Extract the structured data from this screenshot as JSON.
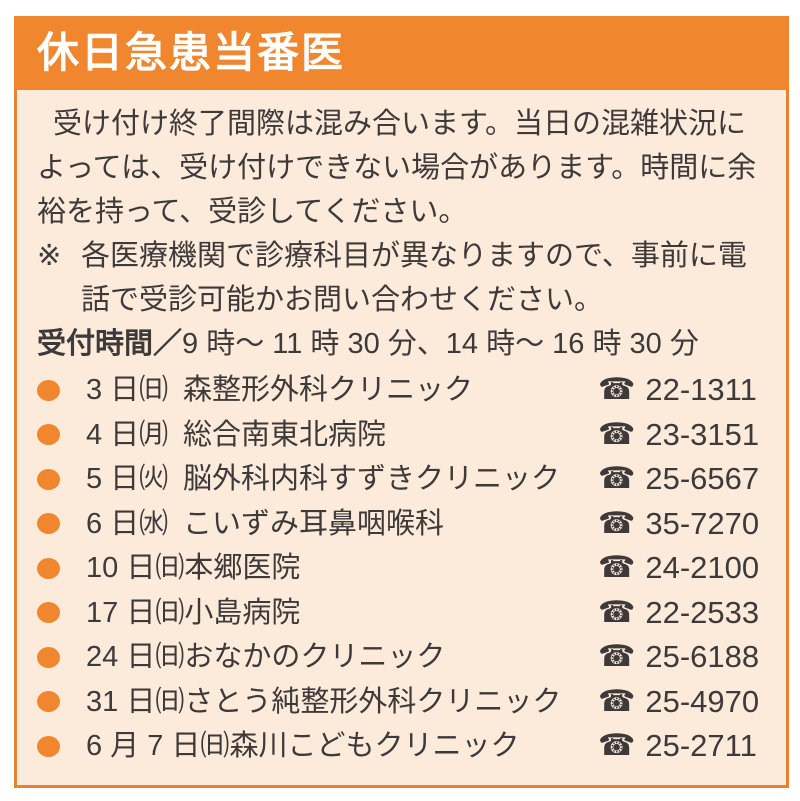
{
  "panel": {
    "title": "休日急患当番医",
    "colors": {
      "header_bg": "#F0862E",
      "title_text": "#FFFFFF",
      "body_bg": "#FCEADB",
      "border": "#E8822C",
      "text": "#3E3A39",
      "bullet": "#F0862E"
    }
  },
  "intro": "受け付け終了間際は混み合います。当日の混雑状況によっては、受け付けできない場合があります。時間に余裕を持って、受診してください。",
  "note": {
    "marker": "※",
    "text": "各医療機関で診療科目が異なりますので、事前に電話で受診可能かお問い合わせください。"
  },
  "hours": {
    "label": "受付時間",
    "separator": "／",
    "value": "9 時～ 11 時 30 分、14 時～ 16 時 30 分"
  },
  "icons": {
    "phone": "☎",
    "bullet": "●"
  },
  "entries": [
    {
      "date": "3 日㈰",
      "name": "森整形外科クリニック",
      "phone": "22-1311"
    },
    {
      "date": "4 日㈪",
      "name": "総合南東北病院",
      "phone": "23-3151"
    },
    {
      "date": "5 日㈫",
      "name": "脳外科内科すずきクリニック",
      "phone": "25-6567"
    },
    {
      "date": "6 日㈬",
      "name": "こいずみ耳鼻咽喉科",
      "phone": "35-7270"
    },
    {
      "date": "10 日㈰",
      "name": "本郷医院",
      "phone": "24-2100"
    },
    {
      "date": "17 日㈰",
      "name": "小島病院",
      "phone": "22-2533"
    },
    {
      "date": "24 日㈰",
      "name": "おなかのクリニック",
      "phone": "25-6188"
    },
    {
      "date": "31 日㈰",
      "name": "さとう純整形外科クリニック",
      "phone": "25-4970"
    },
    {
      "date": "6 月 7 日㈰",
      "name": "森川こどもクリニック",
      "phone": "25-2711"
    }
  ]
}
